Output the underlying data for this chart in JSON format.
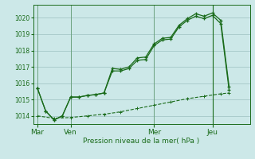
{
  "background_color": "#cce8e8",
  "grid_color": "#aacccc",
  "line_color_dark": "#1a6b1a",
  "xlabel": "Pression niveau de la mer( hPa )",
  "ylim": [
    1013.5,
    1020.8
  ],
  "yticks": [
    1014,
    1015,
    1016,
    1017,
    1018,
    1019,
    1020
  ],
  "day_labels": [
    "Mar",
    "Ven",
    "Mer",
    "Jeu"
  ],
  "day_positions": [
    0,
    4,
    14,
    21
  ],
  "xlim": [
    -0.5,
    25.5
  ],
  "series1_x": [
    0,
    1,
    2,
    3,
    4,
    5,
    6,
    7,
    8,
    9,
    10,
    11,
    12,
    13,
    14,
    15,
    16,
    17,
    18,
    19,
    20,
    21,
    22,
    23
  ],
  "series1_y": [
    1015.7,
    1014.3,
    1013.75,
    1014.0,
    1015.15,
    1015.15,
    1015.25,
    1015.3,
    1015.4,
    1016.9,
    1016.85,
    1017.0,
    1017.55,
    1017.6,
    1018.4,
    1018.75,
    1018.8,
    1019.55,
    1019.95,
    1020.25,
    1020.1,
    1020.3,
    1019.85,
    1015.8
  ],
  "series2_x": [
    0,
    1,
    2,
    3,
    4,
    5,
    6,
    7,
    8,
    9,
    10,
    11,
    12,
    13,
    14,
    15,
    16,
    17,
    18,
    19,
    20,
    21,
    22,
    23
  ],
  "series2_y": [
    1015.7,
    1014.3,
    1013.75,
    1014.0,
    1015.15,
    1015.15,
    1015.25,
    1015.3,
    1015.4,
    1016.75,
    1016.75,
    1016.9,
    1017.4,
    1017.45,
    1018.3,
    1018.65,
    1018.7,
    1019.45,
    1019.85,
    1020.1,
    1019.95,
    1020.15,
    1019.65,
    1015.6
  ],
  "series3_x": [
    0,
    2,
    4,
    6,
    8,
    10,
    12,
    14,
    16,
    18,
    20,
    22,
    23
  ],
  "series3_y": [
    1014.0,
    1013.85,
    1013.9,
    1014.0,
    1014.1,
    1014.25,
    1014.45,
    1014.65,
    1014.85,
    1015.05,
    1015.2,
    1015.35,
    1015.4
  ],
  "vline_x": 21
}
